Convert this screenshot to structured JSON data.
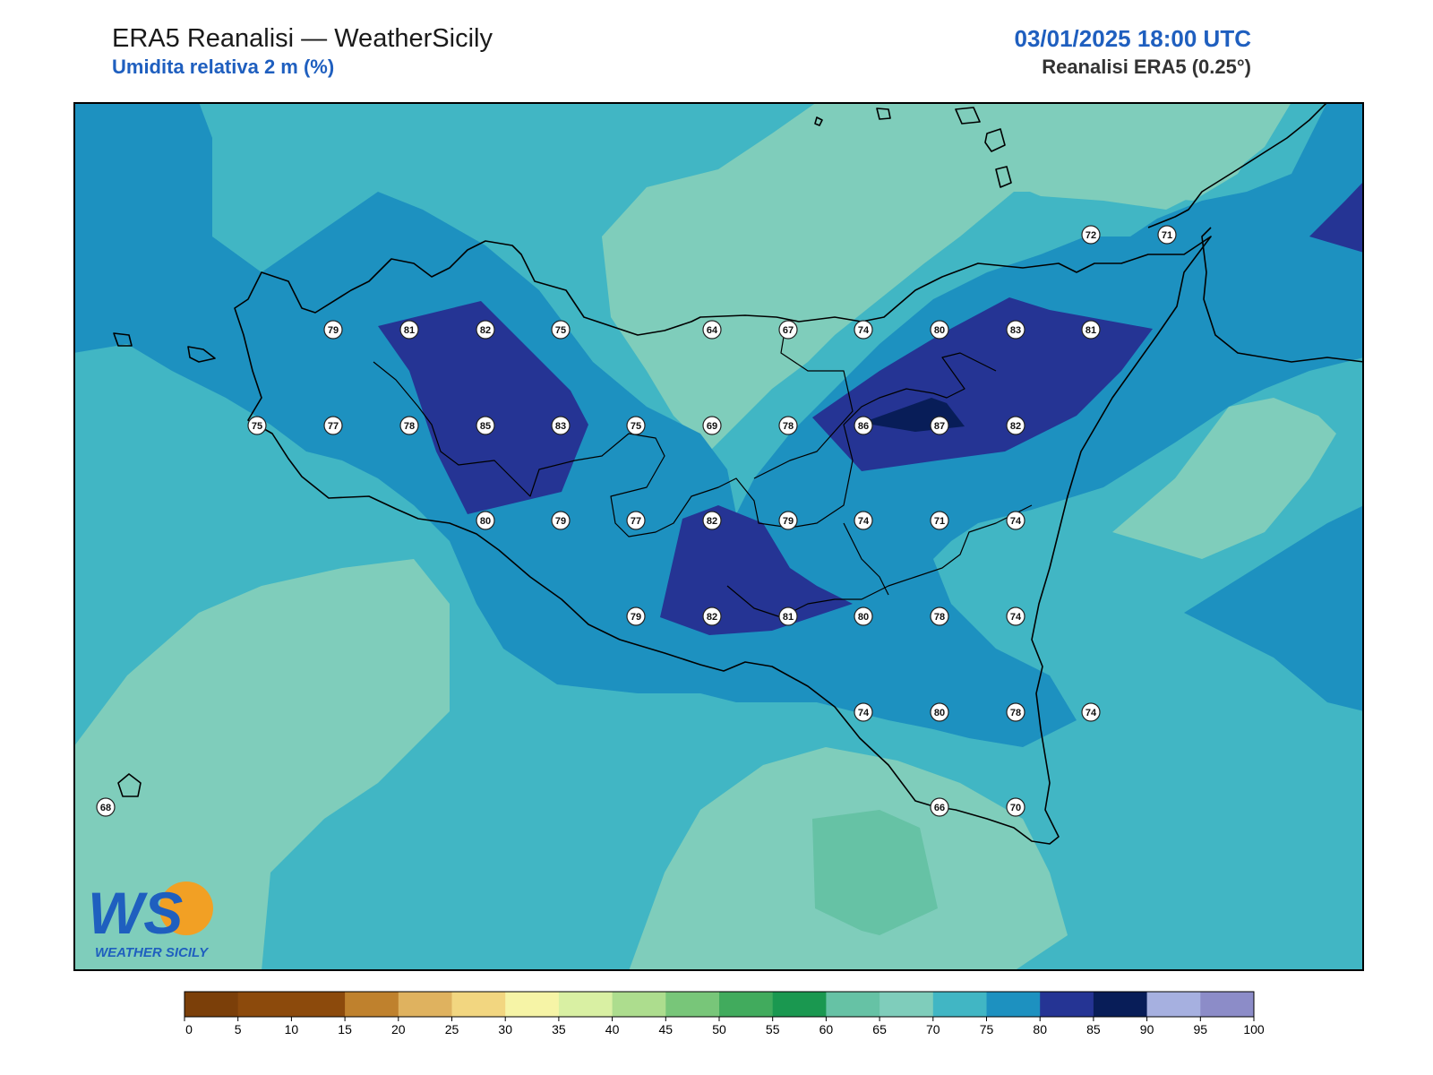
{
  "header": {
    "title": "ERA5 Reanalisi — WeatherSicily",
    "subtitle": "Umidita relativa 2 m (%)",
    "datetime": "03/01/2025 18:00 UTC",
    "source": "Reanalisi ERA5 (0.25°)"
  },
  "logo": {
    "mark": "WS",
    "text": "WEATHER SICILY"
  },
  "colors": {
    "band_60_65": "#66c2a5",
    "band_65_70": "#7fcdbb",
    "band_70_75": "#41b6c4",
    "band_75_80": "#1d91c0",
    "band_80_85": "#253494",
    "band_85_90": "#081d58",
    "coastline": "#000000",
    "title_blue": "#1f5fbf"
  },
  "colorbar": {
    "ticks": [
      "0",
      "5",
      "10",
      "15",
      "20",
      "25",
      "30",
      "35",
      "40",
      "45",
      "50",
      "55",
      "60",
      "65",
      "70",
      "75",
      "80",
      "85",
      "90",
      "95",
      "100"
    ],
    "colors": [
      "#7b3f09",
      "#8c4a0c",
      "#8c4a0c",
      "#bf812d",
      "#dfb25f",
      "#f2d680",
      "#f6f4a6",
      "#d9f0a3",
      "#addd8e",
      "#78c679",
      "#41ab5d",
      "#1a9850",
      "#66c2a5",
      "#7fcdbb",
      "#41b6c4",
      "#1d91c0",
      "#253494",
      "#081d58",
      "#a6b0e0",
      "#8c8cc8"
    ]
  },
  "stations": [
    {
      "value": "79",
      "row": 0,
      "col": 3
    },
    {
      "value": "81",
      "row": 0,
      "col": 4
    },
    {
      "value": "82",
      "row": 0,
      "col": 5
    },
    {
      "value": "75",
      "row": 0,
      "col": 6
    },
    {
      "value": "64",
      "row": 0,
      "col": 8
    },
    {
      "value": "67",
      "row": 0,
      "col": 9
    },
    {
      "value": "74",
      "row": 0,
      "col": 10
    },
    {
      "value": "80",
      "row": 0,
      "col": 11
    },
    {
      "value": "83",
      "row": 0,
      "col": 12
    },
    {
      "value": "81",
      "row": 0,
      "col": 13
    },
    {
      "value": "75",
      "row": 1,
      "col": 2
    },
    {
      "value": "77",
      "row": 1,
      "col": 3
    },
    {
      "value": "78",
      "row": 1,
      "col": 4
    },
    {
      "value": "85",
      "row": 1,
      "col": 5
    },
    {
      "value": "83",
      "row": 1,
      "col": 6
    },
    {
      "value": "75",
      "row": 1,
      "col": 7
    },
    {
      "value": "69",
      "row": 1,
      "col": 8
    },
    {
      "value": "78",
      "row": 1,
      "col": 9
    },
    {
      "value": "86",
      "row": 1,
      "col": 10
    },
    {
      "value": "87",
      "row": 1,
      "col": 11
    },
    {
      "value": "82",
      "row": 1,
      "col": 12
    },
    {
      "value": "80",
      "row": 2,
      "col": 5
    },
    {
      "value": "79",
      "row": 2,
      "col": 6
    },
    {
      "value": "77",
      "row": 2,
      "col": 7
    },
    {
      "value": "82",
      "row": 2,
      "col": 8
    },
    {
      "value": "79",
      "row": 2,
      "col": 9
    },
    {
      "value": "74",
      "row": 2,
      "col": 10
    },
    {
      "value": "71",
      "row": 2,
      "col": 11
    },
    {
      "value": "74",
      "row": 2,
      "col": 12
    },
    {
      "value": "79",
      "row": 3,
      "col": 7
    },
    {
      "value": "82",
      "row": 3,
      "col": 8
    },
    {
      "value": "81",
      "row": 3,
      "col": 9
    },
    {
      "value": "80",
      "row": 3,
      "col": 10
    },
    {
      "value": "78",
      "row": 3,
      "col": 11
    },
    {
      "value": "74",
      "row": 3,
      "col": 12
    },
    {
      "value": "74",
      "row": 4,
      "col": 10
    },
    {
      "value": "80",
      "row": 4,
      "col": 11
    },
    {
      "value": "78",
      "row": 4,
      "col": 12
    },
    {
      "value": "74",
      "row": 4,
      "col": 13
    },
    {
      "value": "66",
      "row": 5,
      "col": 11
    },
    {
      "value": "70",
      "row": 5,
      "col": 12
    },
    {
      "value": "72",
      "row": -1,
      "col": 13
    },
    {
      "value": "71",
      "row": -1,
      "col": 14
    },
    {
      "value": "68",
      "row": 5,
      "col": 0
    }
  ]
}
